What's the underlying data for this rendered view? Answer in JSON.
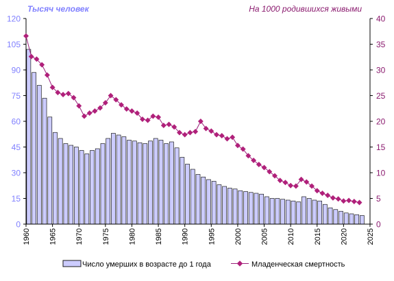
{
  "chart_data": {
    "type": "bar",
    "left_axis_title": "Тысяч человек",
    "right_axis_title": "На 1000 родившихся живыми",
    "left_axis": {
      "range": [
        0,
        120
      ],
      "ticks": [
        0,
        15,
        30,
        45,
        60,
        75,
        90,
        105,
        120
      ],
      "tick_labels": [
        "0",
        "15",
        "30",
        "45",
        "60",
        "75",
        "90",
        "105",
        "120"
      ]
    },
    "right_axis": {
      "range": [
        0,
        40
      ],
      "ticks": [
        0,
        5,
        10,
        15,
        20,
        25,
        30,
        35,
        40
      ],
      "tick_labels": [
        "0",
        "5",
        "10",
        "15",
        "20",
        "25",
        "30",
        "35",
        "40"
      ]
    },
    "x_axis": {
      "range": [
        1960,
        2025
      ],
      "ticks": [
        1960,
        1965,
        1970,
        1975,
        1980,
        1985,
        1990,
        1995,
        2000,
        2005,
        2010,
        2015,
        2020,
        2025
      ],
      "tick_labels": [
        "1960",
        "1965",
        "1970",
        "1975",
        "1980",
        "1985",
        "1990",
        "1995",
        "2000",
        "2005",
        "2010",
        "2015",
        "2020",
        "2025"
      ]
    },
    "grid": false,
    "legend_position": "bottom",
    "colors": {
      "left_axis": "#8080ff",
      "right_axis": "#8a1a6e",
      "bar_fill": "#ccccff",
      "bar_stroke": "#1a1a1a",
      "line": "#9a1f7a",
      "marker": "#b0207a"
    },
    "years": [
      1960,
      1961,
      1962,
      1963,
      1964,
      1965,
      1966,
      1967,
      1968,
      1969,
      1970,
      1971,
      1972,
      1973,
      1974,
      1975,
      1976,
      1977,
      1978,
      1979,
      1980,
      1981,
      1982,
      1983,
      1984,
      1985,
      1986,
      1987,
      1988,
      1989,
      1990,
      1991,
      1992,
      1993,
      1994,
      1995,
      1996,
      1997,
      1998,
      1999,
      2000,
      2001,
      2002,
      2003,
      2004,
      2005,
      2006,
      2007,
      2008,
      2009,
      2010,
      2011,
      2012,
      2013,
      2014,
      2015,
      2016,
      2017,
      2018,
      2019,
      2020,
      2021,
      2022,
      2023
    ],
    "series": [
      {
        "name": "Число умерших в возрасте до 1 года",
        "kind": "bar",
        "axis": "left",
        "values": [
          102,
          88.5,
          81,
          73.5,
          62.5,
          53.5,
          50,
          47,
          46,
          45,
          43,
          41,
          43,
          44,
          47,
          50,
          53,
          52,
          51,
          49,
          48.5,
          47.5,
          47,
          48.5,
          50,
          49,
          47,
          48,
          44.5,
          39,
          35,
          32,
          29,
          27.5,
          26,
          25,
          23,
          22,
          21,
          20.5,
          19.5,
          19,
          18.5,
          18,
          17.5,
          16,
          15,
          15,
          14.5,
          14,
          13.5,
          13,
          16,
          15,
          14,
          13.5,
          11.5,
          9.5,
          8.5,
          7.5,
          6.5,
          6,
          5.5,
          5
        ]
      },
      {
        "name": "Младенческая смертность",
        "kind": "line",
        "axis": "right",
        "values": [
          36.6,
          32.6,
          32.1,
          31.0,
          29.0,
          26.6,
          25.6,
          25.2,
          25.4,
          24.6,
          23.0,
          21.0,
          21.6,
          22.0,
          22.6,
          23.6,
          25.0,
          24.2,
          23.2,
          22.4,
          22.0,
          21.6,
          20.4,
          20.2,
          21.0,
          20.8,
          19.2,
          19.4,
          18.9,
          17.8,
          17.4,
          17.8,
          18.0,
          20.0,
          18.6,
          18.1,
          17.4,
          17.2,
          16.6,
          16.9,
          15.3,
          14.6,
          13.3,
          12.4,
          11.6,
          11.0,
          10.2,
          9.4,
          8.5,
          8.1,
          7.5,
          7.4,
          8.7,
          8.2,
          7.4,
          6.5,
          6.0,
          5.6,
          5.1,
          4.9,
          4.5,
          4.6,
          4.4,
          4.2
        ]
      }
    ]
  }
}
